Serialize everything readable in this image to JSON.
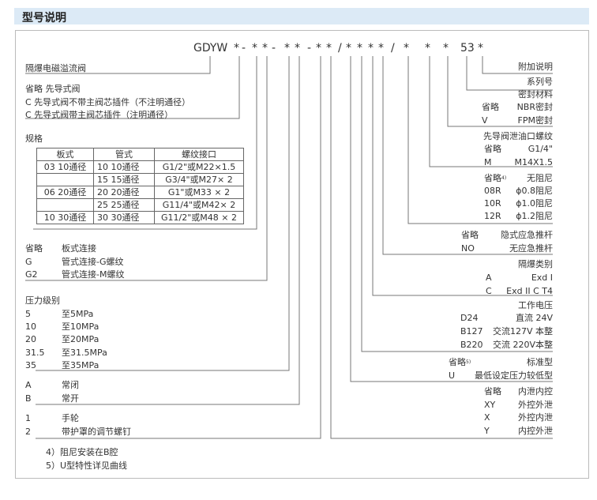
{
  "section_title": "型号说明",
  "model_code": {
    "prefix": "GDYW",
    "segments": [
      "*",
      "-",
      "*",
      "*",
      "-",
      "*",
      "*",
      "-",
      "*",
      "*",
      "/",
      "*",
      "*",
      "*",
      "*",
      "/",
      "*",
      "*",
      "*",
      "53",
      "*"
    ]
  },
  "left": {
    "product_name": "隔爆电磁溢流阀",
    "pilot": [
      "省略 先导式阀",
      "C 先导式阀不带主阀芯插件（不注明通径）",
      "C 先导式阀带主阀芯插件（注明通径）"
    ],
    "spec": {
      "title": "规格",
      "headers": [
        "板式",
        "管式",
        "螺纹接口"
      ],
      "rows": [
        [
          "03  10通径",
          "10  10通径",
          "G1/2\"或M22×1.5"
        ],
        [
          "",
          "15  15通径",
          "G3/4\"或M27× 2"
        ],
        [
          "06  20通径",
          "20  20通径",
          "G1\"或M33 × 2"
        ],
        [
          "",
          "25  25通径",
          "G11/4\"或M42× 2"
        ],
        [
          "10  30通径",
          "30  30通径",
          "G11/2\"或M48 × 2"
        ]
      ]
    },
    "connection": [
      [
        "省略",
        "板式连接"
      ],
      [
        "G",
        "管式连接-G螺纹"
      ],
      [
        "G2",
        "管式连接-M螺纹"
      ]
    ],
    "pressure": {
      "title": "压力级别",
      "items": [
        [
          "5",
          "至5MPa"
        ],
        [
          "10",
          "至10MPa"
        ],
        [
          "20",
          "至20MPa"
        ],
        [
          "31.5",
          "至31.5MPa"
        ],
        [
          "35",
          "至35MPa"
        ]
      ]
    },
    "state": [
      [
        "A",
        "常闭"
      ],
      [
        "B",
        "常开"
      ]
    ],
    "adjust": [
      [
        "1",
        "手轮"
      ],
      [
        "2",
        "带护罩的调节螺钉"
      ]
    ],
    "notes": [
      "4）阻尼安装在B腔",
      "5）U型特性详见曲线"
    ]
  },
  "right": {
    "extra": "附加说明",
    "series": "系列号",
    "seal": {
      "title": "密封材料",
      "items": [
        [
          "省略",
          "NBR密封"
        ],
        [
          "V",
          "FPM密封"
        ]
      ]
    },
    "drain": {
      "title": "先导阀泄油口螺纹",
      "items": [
        [
          "省略",
          "G1/4\""
        ],
        [
          "M",
          "M14X1.5"
        ]
      ]
    },
    "damping": {
      "items": [
        [
          "省略",
          "4)",
          "无阻尼"
        ],
        [
          "08R",
          "",
          "ϕ0.8阻尼"
        ],
        [
          "10R",
          "",
          "ϕ1.0阻尼"
        ],
        [
          "12R",
          "",
          "ϕ1.2阻尼"
        ]
      ]
    },
    "emergency": {
      "items": [
        [
          "省略",
          "隐式应急推杆"
        ],
        [
          "NO",
          "无应急推杆"
        ]
      ]
    },
    "explosion": {
      "title": "隔爆类别",
      "items": [
        [
          "A",
          "Exd I"
        ],
        [
          "C",
          "Exd II C  T4"
        ]
      ]
    },
    "voltage": {
      "title": "工作电压",
      "items": [
        [
          "D24",
          "直流 24V"
        ],
        [
          "B127",
          "交流127V 本整"
        ],
        [
          "B220",
          "交流 220V本整"
        ]
      ]
    },
    "type": {
      "items": [
        [
          "省略",
          "5)",
          "标准型"
        ],
        [
          "U",
          "",
          "最低设定压力较低型"
        ]
      ]
    },
    "control": {
      "items": [
        [
          "省略",
          "内泄内控"
        ],
        [
          "XY",
          "外控外泄"
        ],
        [
          "X",
          "外控内泄"
        ],
        [
          "Y",
          "内控外泄"
        ]
      ]
    }
  }
}
